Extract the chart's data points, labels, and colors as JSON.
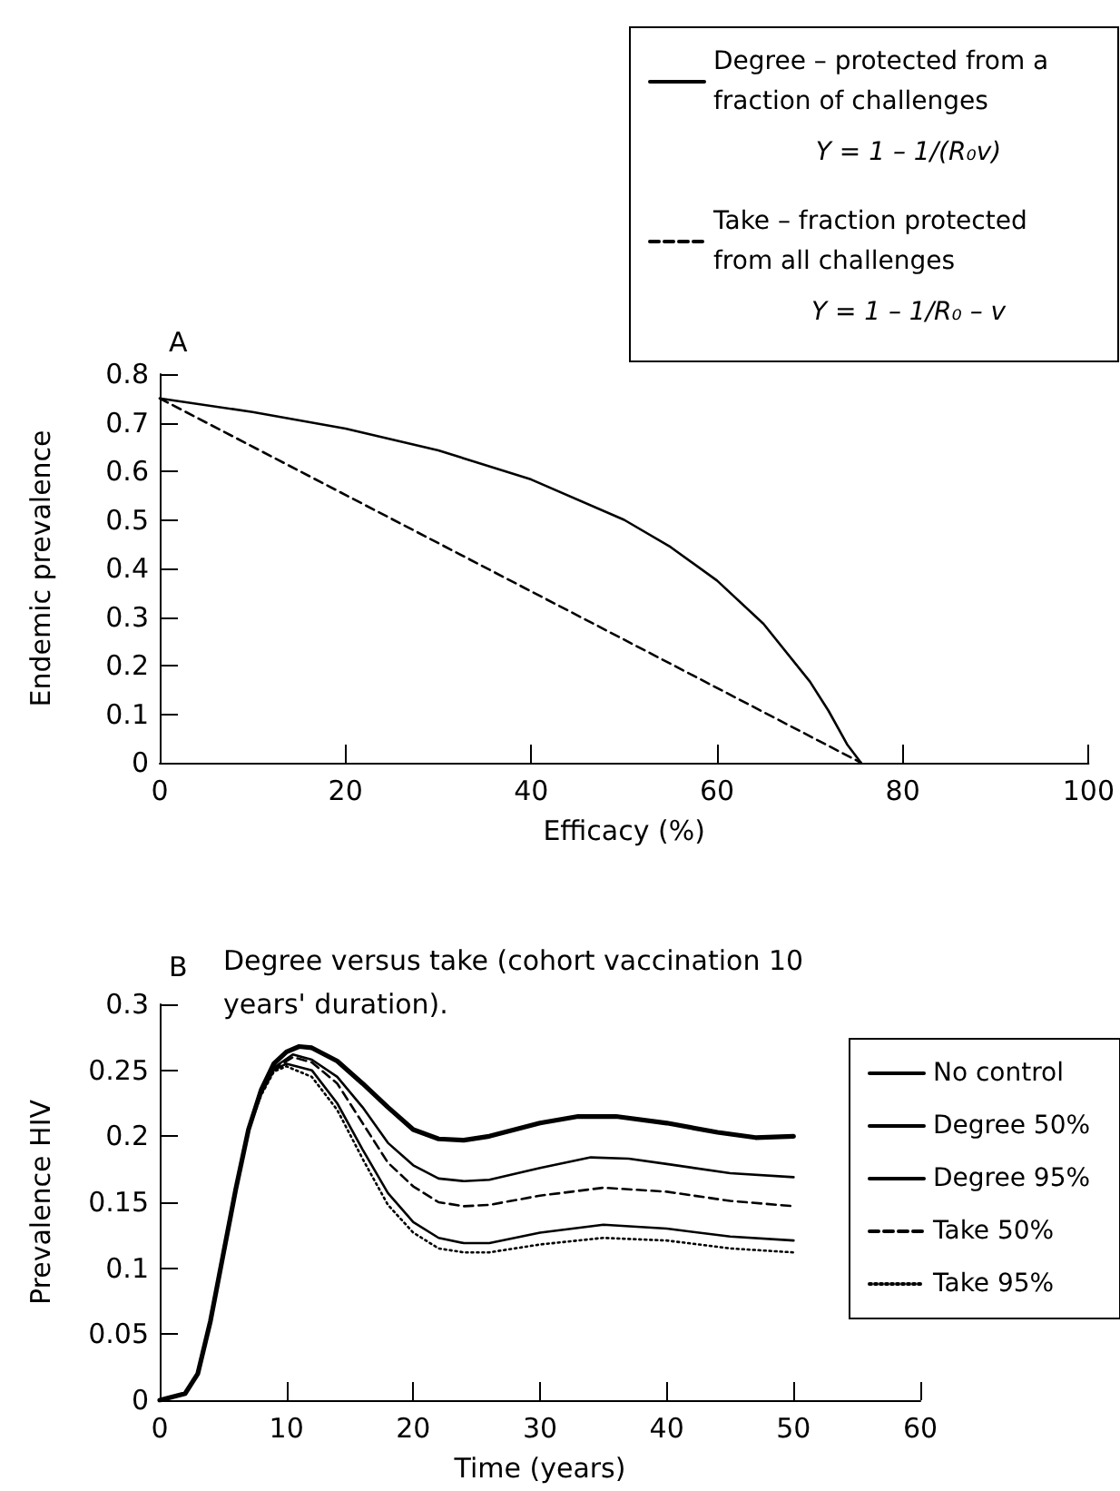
{
  "chart_data": [
    {
      "type": "line",
      "title": "A",
      "xlabel": "Efficacy (%)",
      "ylabel": "Endemic prevalence",
      "xlim": [
        0,
        100
      ],
      "xticks": [
        0,
        20,
        40,
        60,
        80,
        100
      ],
      "ylim": [
        0,
        0.8
      ],
      "yticks": [
        0,
        0.1,
        0.2,
        0.3,
        0.4,
        0.5,
        0.6,
        0.7,
        0.8
      ],
      "grid": false,
      "legend": "top right",
      "marker": "none",
      "annotations": [
        "Y = 1 – 1/(R₀v)",
        "Y = 1 – 1/R₀ – v"
      ],
      "series": [
        {
          "name": "Degree – protected from a fraction of challenges",
          "color": "#000000",
          "line_style": "solid",
          "x": [
            0,
            10,
            20,
            30,
            40,
            50,
            55,
            60,
            65,
            70,
            72,
            74,
            75.5
          ],
          "values": [
            0.75,
            0.722,
            0.688,
            0.643,
            0.583,
            0.5,
            0.444,
            0.375,
            0.286,
            0.167,
            0.107,
            0.038,
            0
          ]
        },
        {
          "name": "Take – fraction protected from all challenges",
          "color": "#000000",
          "line_style": "dashed",
          "x": [
            0,
            75.5
          ],
          "values": [
            0.75,
            0
          ]
        }
      ]
    },
    {
      "type": "line",
      "title": "B",
      "subtitle": "Degree versus take (cohort vaccination 10 years' duration).",
      "xlabel": "Time (years)",
      "ylabel": "Prevalence HIV",
      "xlim": [
        0,
        60
      ],
      "xticks": [
        0,
        10,
        20,
        30,
        40,
        50,
        60
      ],
      "ylim": [
        0,
        0.3
      ],
      "yticks": [
        0,
        0.05,
        0.1,
        0.15,
        0.2,
        0.25,
        0.3
      ],
      "grid": false,
      "legend": "right",
      "marker": "none",
      "series": [
        {
          "name": "No control",
          "color": "#000000",
          "line_style": "solid",
          "x": [
            0,
            2,
            3,
            4,
            5,
            6,
            7,
            8,
            9,
            10,
            11,
            12,
            14,
            16,
            18,
            20,
            22,
            24,
            26,
            28,
            30,
            33,
            36,
            40,
            44,
            47,
            50
          ],
          "values": [
            0,
            0.005,
            0.02,
            0.06,
            0.11,
            0.16,
            0.205,
            0.235,
            0.255,
            0.264,
            0.268,
            0.267,
            0.257,
            0.24,
            0.222,
            0.205,
            0.198,
            0.197,
            0.2,
            0.205,
            0.21,
            0.215,
            0.215,
            0.21,
            0.203,
            0.199,
            0.2
          ]
        },
        {
          "name": "Degree 50%",
          "color": "#000000",
          "line_style": "solid",
          "x": [
            0,
            2,
            3,
            4,
            5,
            6,
            7,
            8,
            9,
            10.5,
            12,
            14,
            16,
            18,
            20,
            22,
            24,
            26,
            30,
            34,
            37,
            40,
            45,
            50
          ],
          "values": [
            0,
            0.005,
            0.02,
            0.06,
            0.11,
            0.16,
            0.205,
            0.233,
            0.252,
            0.262,
            0.258,
            0.245,
            0.222,
            0.195,
            0.178,
            0.168,
            0.166,
            0.167,
            0.176,
            0.184,
            0.183,
            0.179,
            0.172,
            0.169
          ]
        },
        {
          "name": "Degree 95%",
          "color": "#000000",
          "line_style": "solid",
          "x": [
            0,
            2,
            3,
            4,
            5,
            6,
            7,
            8,
            9,
            10,
            12,
            14,
            16,
            18,
            20,
            22,
            24,
            26,
            30,
            35,
            40,
            45,
            50
          ],
          "values": [
            0,
            0.005,
            0.02,
            0.06,
            0.11,
            0.16,
            0.205,
            0.232,
            0.25,
            0.255,
            0.25,
            0.225,
            0.19,
            0.157,
            0.135,
            0.123,
            0.119,
            0.119,
            0.127,
            0.133,
            0.13,
            0.124,
            0.121
          ]
        },
        {
          "name": "Take 50%",
          "color": "#000000",
          "line_style": "dashed",
          "x": [
            0,
            2,
            3,
            4,
            5,
            6,
            7,
            8,
            9,
            10.5,
            12,
            14,
            16,
            18,
            20,
            22,
            24,
            26,
            30,
            35,
            40,
            45,
            50
          ],
          "values": [
            0,
            0.005,
            0.02,
            0.06,
            0.11,
            0.16,
            0.205,
            0.233,
            0.251,
            0.26,
            0.256,
            0.24,
            0.21,
            0.18,
            0.162,
            0.15,
            0.147,
            0.148,
            0.155,
            0.161,
            0.158,
            0.151,
            0.147
          ]
        },
        {
          "name": "Take 95%",
          "color": "#000000",
          "line_style": "dotted",
          "x": [
            0,
            2,
            3,
            4,
            5,
            6,
            7,
            8,
            9,
            10,
            12,
            14,
            16,
            18,
            20,
            22,
            24,
            26,
            30,
            35,
            40,
            45,
            50
          ],
          "values": [
            0,
            0.005,
            0.02,
            0.06,
            0.11,
            0.16,
            0.205,
            0.231,
            0.249,
            0.253,
            0.245,
            0.22,
            0.183,
            0.148,
            0.127,
            0.115,
            0.112,
            0.112,
            0.118,
            0.123,
            0.121,
            0.115,
            0.112
          ]
        }
      ]
    }
  ]
}
